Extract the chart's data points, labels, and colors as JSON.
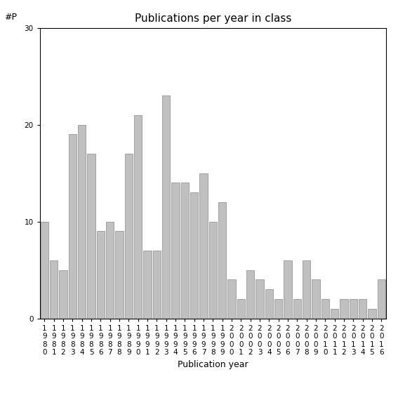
{
  "years": [
    1980,
    1981,
    1982,
    1983,
    1984,
    1985,
    1986,
    1987,
    1988,
    1989,
    1990,
    1991,
    1992,
    1993,
    1994,
    1995,
    1996,
    1997,
    1998,
    1999,
    2000,
    2001,
    2002,
    2003,
    2004,
    2005,
    2006,
    2007,
    2008,
    2009,
    2010,
    2011,
    2012,
    2013,
    2014,
    2015,
    2016
  ],
  "values": [
    10,
    6,
    5,
    19,
    20,
    17,
    9,
    10,
    9,
    17,
    21,
    7,
    7,
    23,
    14,
    14,
    13,
    15,
    10,
    12,
    4,
    2,
    5,
    4,
    3,
    2,
    6,
    2,
    6,
    4,
    2,
    1,
    2,
    2,
    2,
    1,
    4
  ],
  "bar_color": "#c0c0c0",
  "bar_edge_color": "#888888",
  "title": "Publications per year in class",
  "xlabel": "Publication year",
  "ylabel": "#P",
  "ylim": [
    0,
    30
  ],
  "yticks": [
    0,
    10,
    20,
    30
  ],
  "title_fontsize": 11,
  "label_fontsize": 9,
  "tick_fontsize": 7.5,
  "bg_color": "#ffffff"
}
